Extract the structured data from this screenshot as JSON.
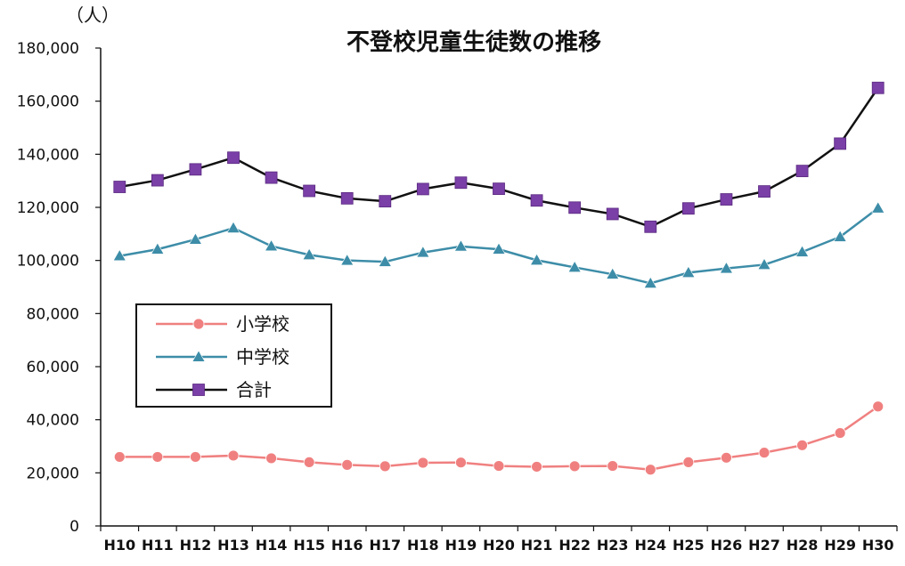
{
  "chart_data": {
    "type": "line",
    "title": "不登校児童生徒数の推移",
    "ylabel": "（人）",
    "xlabel": "",
    "categories": [
      "H10",
      "H11",
      "H12",
      "H13",
      "H14",
      "H15",
      "H16",
      "H17",
      "H18",
      "H19",
      "H20",
      "H21",
      "H22",
      "H23",
      "H24",
      "H25",
      "H26",
      "H27",
      "H28",
      "H29",
      "H30"
    ],
    "ylim": [
      0,
      180000
    ],
    "yticks": [
      0,
      20000,
      40000,
      60000,
      80000,
      100000,
      120000,
      140000,
      160000,
      180000
    ],
    "ytick_labels": [
      "0",
      "20,000",
      "40,000",
      "60,000",
      "80,000",
      "100,000",
      "120,000",
      "140,000",
      "160,000",
      "180,000"
    ],
    "grid": false,
    "legend_position": "left-middle",
    "series": [
      {
        "name": "小学校",
        "marker": "circle",
        "color": "#f08080",
        "values": [
          26000,
          26000,
          26000,
          26500,
          25500,
          24000,
          23000,
          22500,
          23800,
          23900,
          22600,
          22300,
          22500,
          22600,
          21200,
          24000,
          25700,
          27600,
          30400,
          35000,
          45000
        ]
      },
      {
        "name": "中学校",
        "marker": "triangle",
        "color": "#3d8da8",
        "values": [
          101700,
          104200,
          107900,
          112200,
          105400,
          102100,
          100000,
          99500,
          103000,
          105300,
          104200,
          100100,
          97400,
          94800,
          91400,
          95400,
          97000,
          98400,
          103200,
          108900,
          119700
        ]
      },
      {
        "name": "合計",
        "marker": "square",
        "color": "#7b3fa8",
        "line_color": "#111111",
        "values": [
          127700,
          130200,
          134300,
          138700,
          131200,
          126200,
          123400,
          122300,
          126900,
          129300,
          127000,
          122600,
          119900,
          117500,
          112700,
          119600,
          123000,
          126000,
          133700,
          144000,
          165000
        ]
      }
    ]
  }
}
